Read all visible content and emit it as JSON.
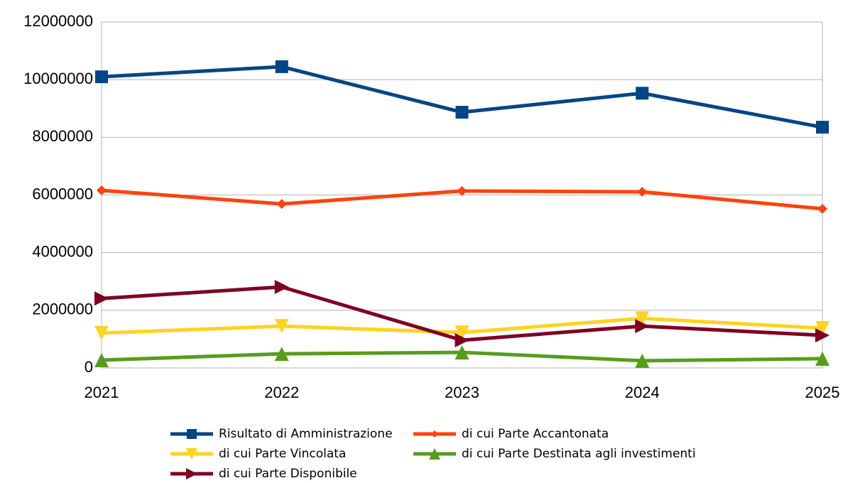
{
  "chart_data": {
    "type": "line",
    "categories": [
      "2021",
      "2022",
      "2023",
      "2024",
      "2025"
    ],
    "series": [
      {
        "name": "Risultato di Amministrazione",
        "color": "#004586",
        "marker": "square",
        "values": [
          10100000,
          10450000,
          8870000,
          9530000,
          8350000
        ]
      },
      {
        "name": "di cui Parte Accantonata",
        "color": "#ff420e",
        "marker": "diamond",
        "values": [
          6160000,
          5690000,
          6140000,
          6110000,
          5520000
        ]
      },
      {
        "name": "di cui Parte Vincolata",
        "color": "#ffd320",
        "marker": "triangle-down",
        "values": [
          1210000,
          1450000,
          1230000,
          1720000,
          1380000
        ]
      },
      {
        "name": "di cui Parte Destinata agli investimenti",
        "color": "#579d1c",
        "marker": "triangle-up",
        "values": [
          270000,
          490000,
          540000,
          250000,
          320000
        ]
      },
      {
        "name": "di cui Parte Disponibile",
        "color": "#7e0021",
        "marker": "triangle-right",
        "values": [
          2410000,
          2810000,
          960000,
          1450000,
          1130000
        ]
      }
    ],
    "ylim": [
      0,
      12000000
    ],
    "yticks": [
      0,
      2000000,
      4000000,
      6000000,
      8000000,
      10000000,
      12000000
    ],
    "grid": true,
    "legend": "bottom"
  }
}
